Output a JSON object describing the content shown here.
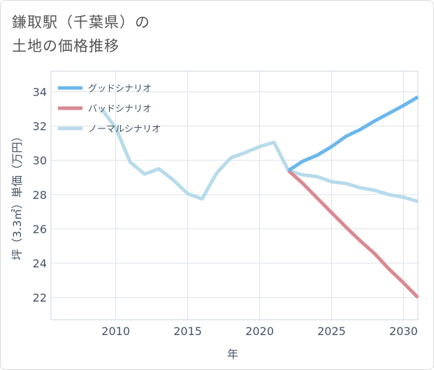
{
  "title": {
    "line1": "鎌取駅（千葉県）の",
    "line2": "土地の価格推移"
  },
  "chart_data": {
    "type": "line",
    "xlabel": "年",
    "ylabel": "坪（3.3㎡）単価（万円）",
    "xlim": [
      2005.5,
      2031
    ],
    "ylim": [
      20.7,
      35.2
    ],
    "xticks": [
      2010,
      2015,
      2020,
      2025,
      2030
    ],
    "yticks": [
      22,
      24,
      26,
      28,
      30,
      32,
      34
    ],
    "grid": true,
    "legend_position": "top-left",
    "series": [
      {
        "name": "グッドシナリオ",
        "color": "#6bb7ec",
        "x": [
          2022,
          2023,
          2024,
          2025,
          2026,
          2027,
          2028,
          2029,
          2030,
          2031
        ],
        "values": [
          29.4,
          29.95,
          30.3,
          30.8,
          31.4,
          31.8,
          32.3,
          32.75,
          33.2,
          33.7
        ]
      },
      {
        "name": "バッドシナリオ",
        "color": "#d98a90",
        "x": [
          2022,
          2023,
          2024,
          2025,
          2026,
          2027,
          2028,
          2029,
          2030,
          2031
        ],
        "values": [
          29.4,
          28.65,
          27.8,
          26.95,
          26.1,
          25.3,
          24.55,
          23.65,
          22.85,
          22.0
        ]
      },
      {
        "name": "ノーマルシナリオ",
        "color": "#b7dbea",
        "x": [
          2009,
          2010,
          2011,
          2012,
          2013,
          2014,
          2015,
          2016,
          2017,
          2018,
          2019,
          2020,
          2021,
          2022,
          2023,
          2024,
          2025,
          2026,
          2027,
          2028,
          2029,
          2030,
          2031
        ],
        "values": [
          33.0,
          31.9,
          29.9,
          29.2,
          29.5,
          28.85,
          28.05,
          27.75,
          29.25,
          30.15,
          30.45,
          30.8,
          31.05,
          29.4,
          29.15,
          29.05,
          28.75,
          28.65,
          28.4,
          28.25,
          28.0,
          27.85,
          27.6
        ]
      }
    ]
  }
}
